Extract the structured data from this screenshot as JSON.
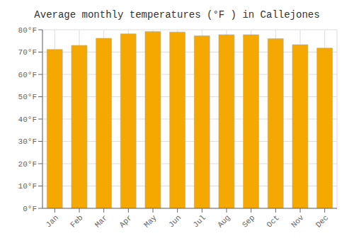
{
  "chart_data": {
    "type": "bar",
    "title": "Average monthly temperatures (°F ) in Callejones",
    "categories": [
      "Jan",
      "Feb",
      "Mar",
      "Apr",
      "May",
      "Jun",
      "Jul",
      "Aug",
      "Sep",
      "Oct",
      "Nov",
      "Dec"
    ],
    "values": [
      71.2,
      73.0,
      76.2,
      78.2,
      79.2,
      79.0,
      77.3,
      77.8,
      77.8,
      76.0,
      73.3,
      71.8
    ],
    "color": "#F5A800",
    "ylim": [
      0,
      80
    ],
    "yticks": [
      {
        "value": 0,
        "label": "0°F"
      },
      {
        "value": 10,
        "label": "10°F"
      },
      {
        "value": 20,
        "label": "20°F"
      },
      {
        "value": 30,
        "label": "30°F"
      },
      {
        "value": 40,
        "label": "40°F"
      },
      {
        "value": 50,
        "label": "50°F"
      },
      {
        "value": 60,
        "label": "60°F"
      },
      {
        "value": 70,
        "label": "70°F"
      },
      {
        "value": 80,
        "label": "80°F"
      }
    ],
    "grid": true
  }
}
